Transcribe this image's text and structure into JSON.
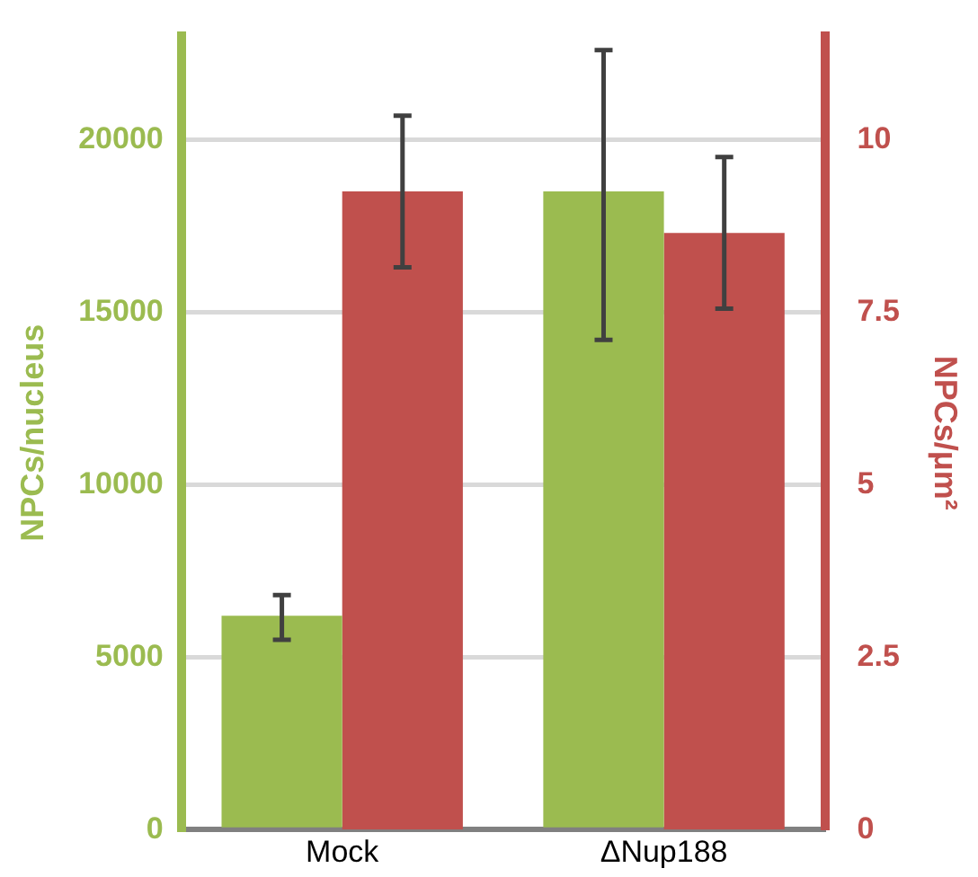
{
  "chart_data": {
    "type": "bar",
    "ylabel": "NPCs/nucleus",
    "y2label": "NPCs/μm²",
    "categories": [
      "Mock",
      "ΔNup188"
    ],
    "series": [
      {
        "color": "#9bbb50",
        "values": [
          6200,
          18500
        ],
        "errors": [
          [
            5500,
            6800
          ],
          [
            14200,
            22600
          ]
        ]
      },
      {
        "color": "#c0504d",
        "values": [
          9.25,
          8.65
        ],
        "errors": [
          [
            8.15,
            10.35
          ],
          [
            7.55,
            9.75
          ]
        ],
        "axis": "y2"
      }
    ],
    "ylim": [
      0,
      23000
    ],
    "yticks": [
      0,
      5000,
      10000,
      15000,
      20000
    ],
    "y2lim": [
      0,
      11.5
    ],
    "y2ticks": [
      0,
      2.5,
      5,
      7.5,
      10
    ],
    "grid": "y",
    "legend": false
  }
}
